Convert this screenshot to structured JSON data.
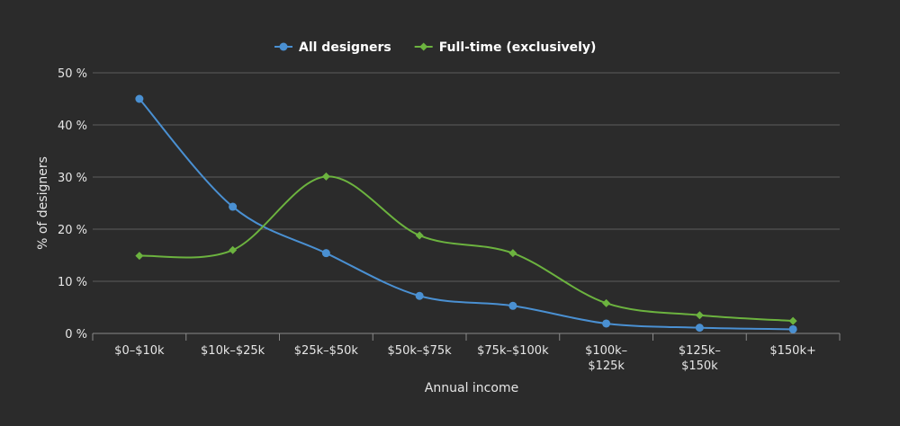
{
  "chart_data": {
    "type": "line",
    "smooth": true,
    "categories": [
      [
        "$0–$10k"
      ],
      [
        "$10k–$25k"
      ],
      [
        "$25k–$50k"
      ],
      [
        "$50k–$75k"
      ],
      [
        "$75k–$100k"
      ],
      [
        "$100k–",
        "$125k"
      ],
      [
        "$125k–",
        "$150k"
      ],
      [
        "$150k+"
      ]
    ],
    "series": [
      {
        "name": "All designers",
        "color": "#4a90d2",
        "marker": "circle",
        "values": [
          45,
          24.3,
          15.4,
          7.2,
          5.3,
          1.9,
          1.1,
          0.8
        ]
      },
      {
        "name": "Full-time (exclusively)",
        "color": "#6cb33f",
        "marker": "diamond",
        "values": [
          14.9,
          16,
          30.1,
          18.8,
          15.4,
          5.8,
          3.5,
          2.4
        ]
      }
    ],
    "xlabel": "Annual income",
    "ylabel": "% of designers",
    "ylim": [
      0,
      50
    ],
    "yticks": [
      0,
      10,
      20,
      30,
      40,
      50
    ],
    "ytick_suffix": " %",
    "grid": true,
    "legend_position": "top-center"
  }
}
